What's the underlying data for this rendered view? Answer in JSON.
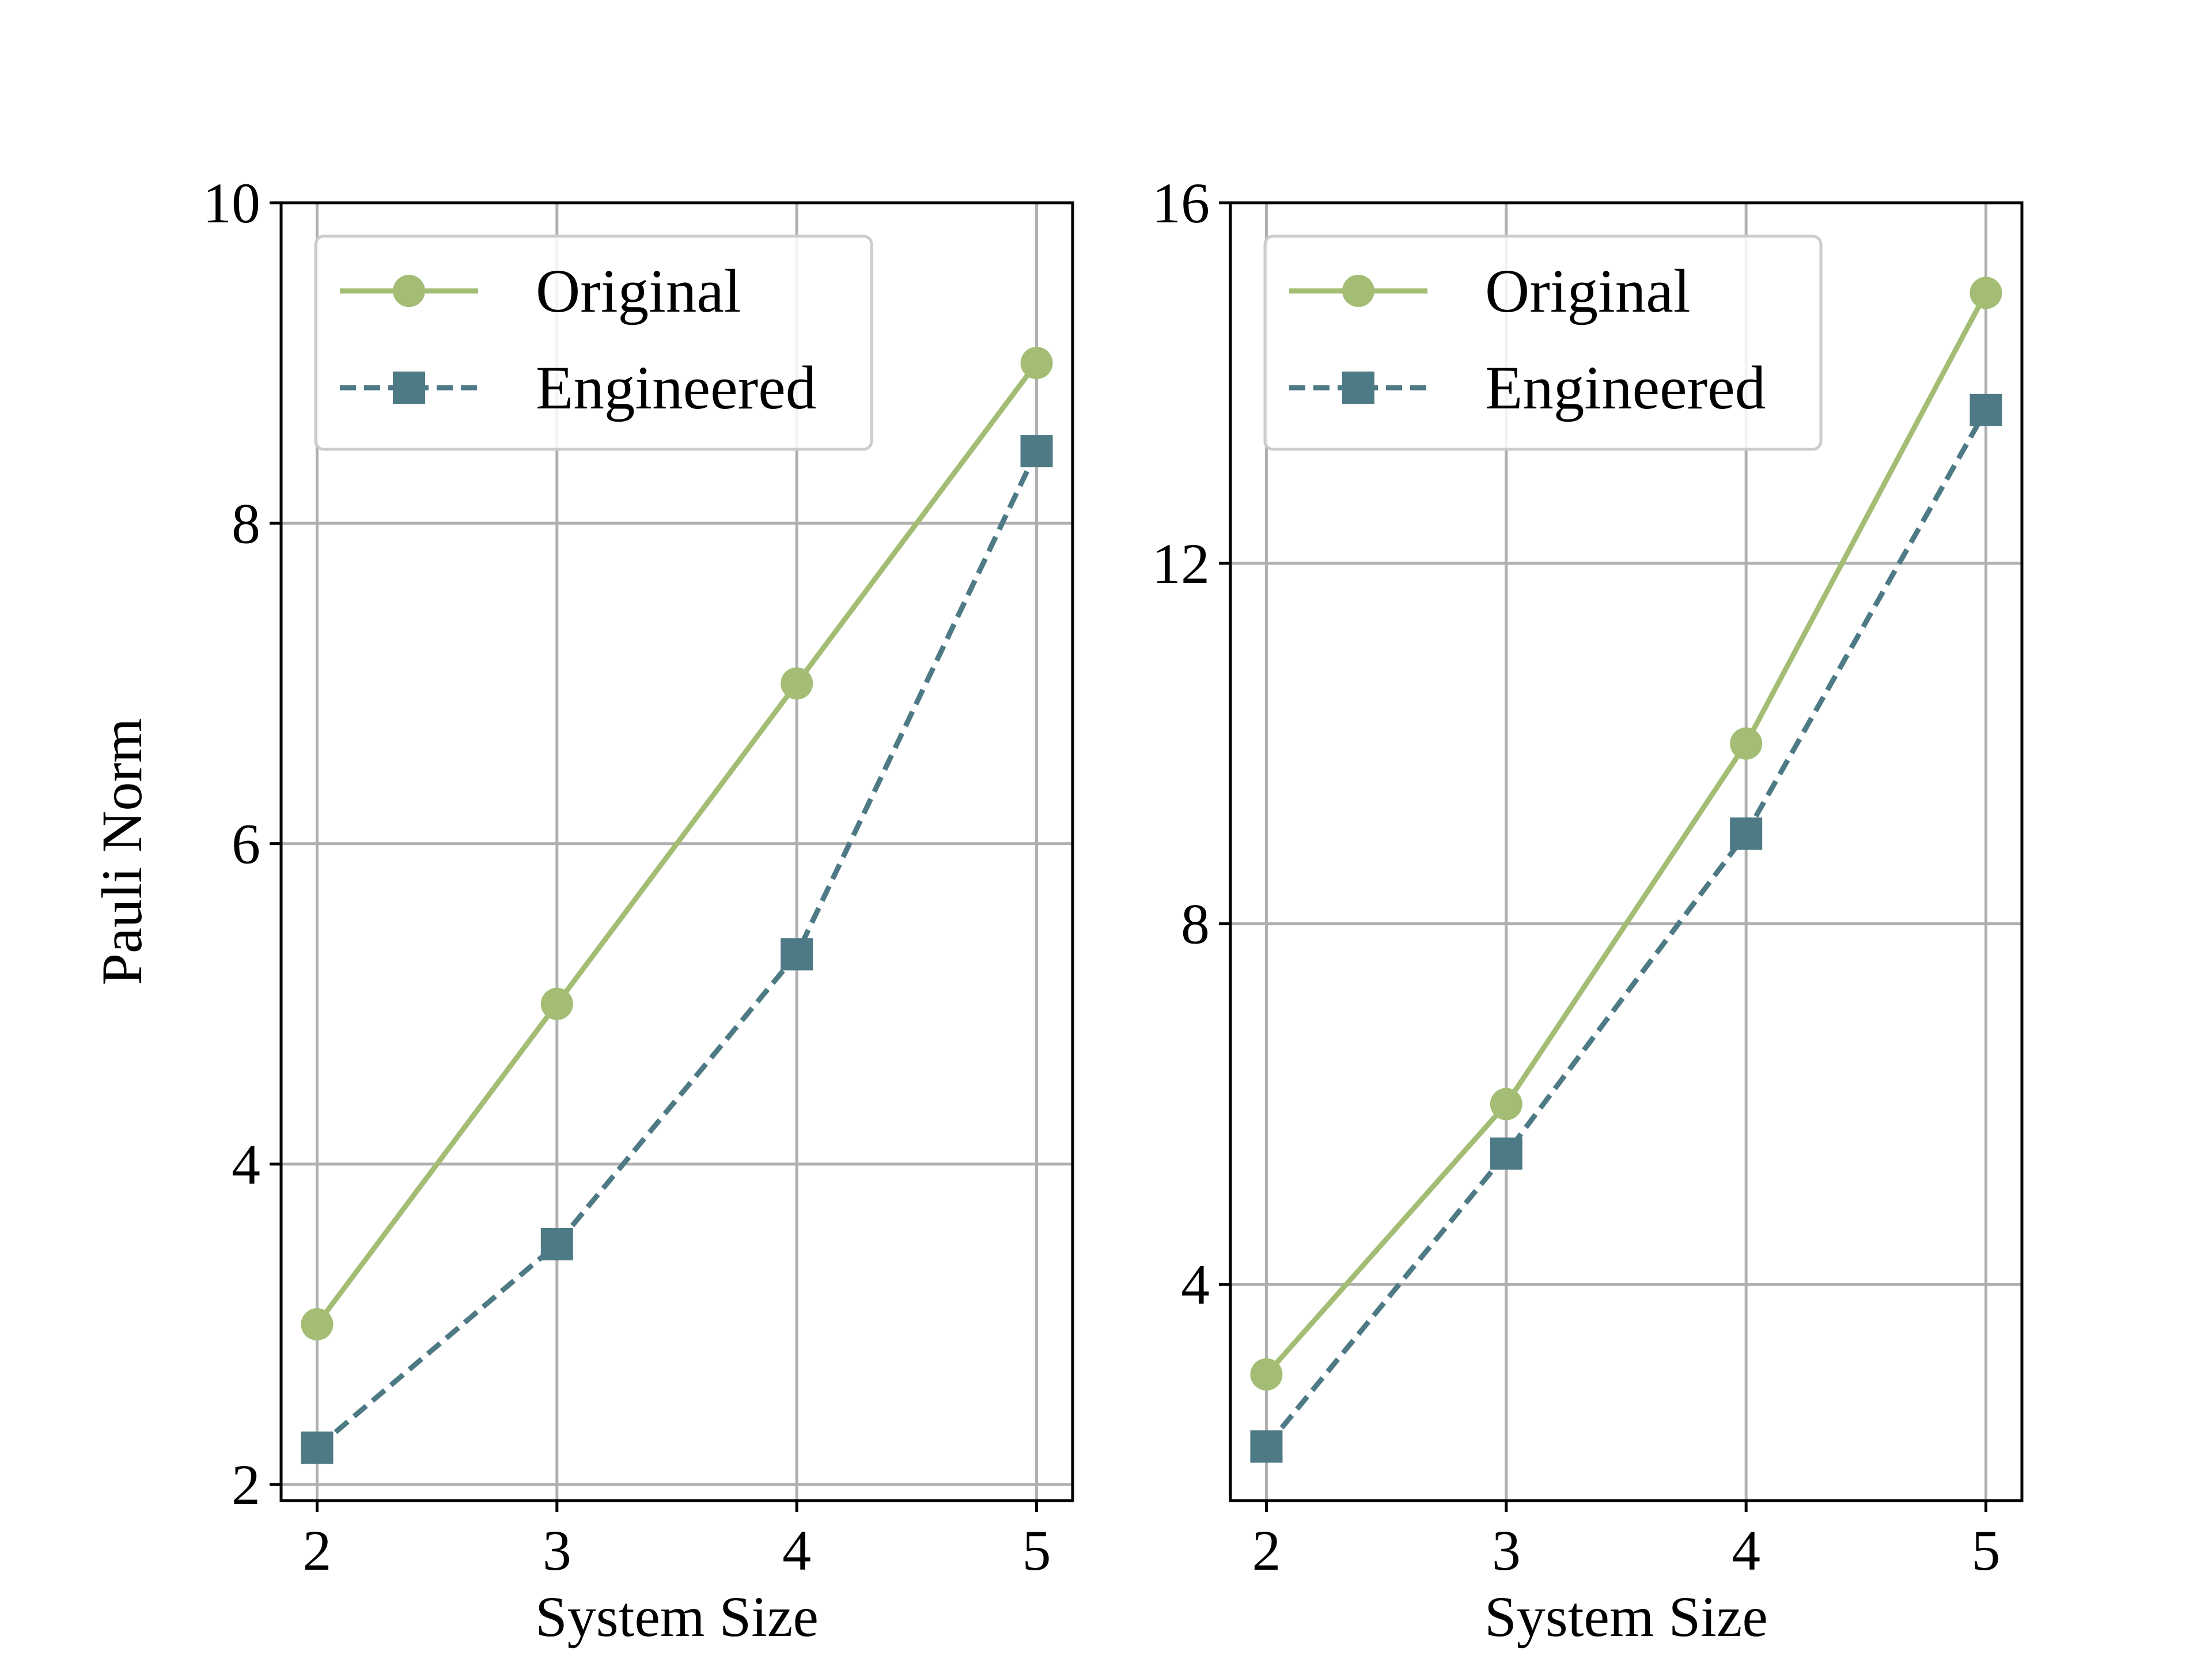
{
  "colors": {
    "original": "#a3bd74",
    "engineered": "#4e7a86",
    "grid": "#b0b0b0",
    "axes": "#000000",
    "legend_frame": "#cccccc"
  },
  "chart_data": [
    {
      "type": "line",
      "title": "",
      "xlabel": "System Size",
      "ylabel": "Pauli Norm",
      "x": [
        2,
        3,
        4,
        5
      ],
      "xlim": [
        1.85,
        5.15
      ],
      "ylim": [
        1.9,
        10
      ],
      "xticks": [
        2,
        3,
        4,
        5
      ],
      "yticks": [
        2,
        4,
        6,
        8,
        10
      ],
      "xtick_labels": [
        "2",
        "3",
        "4",
        "5"
      ],
      "ytick_labels": [
        "2",
        "4",
        "6",
        "8",
        "10"
      ],
      "grid": true,
      "legend_position": "top-left",
      "series": [
        {
          "name": "Original",
          "values": [
            3.0,
            5.0,
            7.0,
            9.0
          ],
          "marker": "circle",
          "linestyle": "solid"
        },
        {
          "name": "Engineered",
          "values": [
            2.23,
            3.5,
            5.31,
            8.45
          ],
          "marker": "square",
          "linestyle": "dashed"
        }
      ]
    },
    {
      "type": "line",
      "title": "",
      "xlabel": "System Size",
      "ylabel": "",
      "x": [
        2,
        3,
        4,
        5
      ],
      "xlim": [
        1.85,
        5.15
      ],
      "ylim": [
        1.6,
        16
      ],
      "xticks": [
        2,
        3,
        4,
        5
      ],
      "yticks": [
        4,
        8,
        12,
        16
      ],
      "xtick_labels": [
        "2",
        "3",
        "4",
        "5"
      ],
      "ytick_labels": [
        "4",
        "8",
        "12",
        "16"
      ],
      "grid": true,
      "legend_position": "top-left",
      "series": [
        {
          "name": "Original",
          "values": [
            3.0,
            6.0,
            10.0,
            15.0
          ],
          "marker": "circle",
          "linestyle": "solid"
        },
        {
          "name": "Engineered",
          "values": [
            2.2,
            5.45,
            9.0,
            13.7
          ],
          "marker": "square",
          "linestyle": "dashed"
        }
      ]
    }
  ]
}
